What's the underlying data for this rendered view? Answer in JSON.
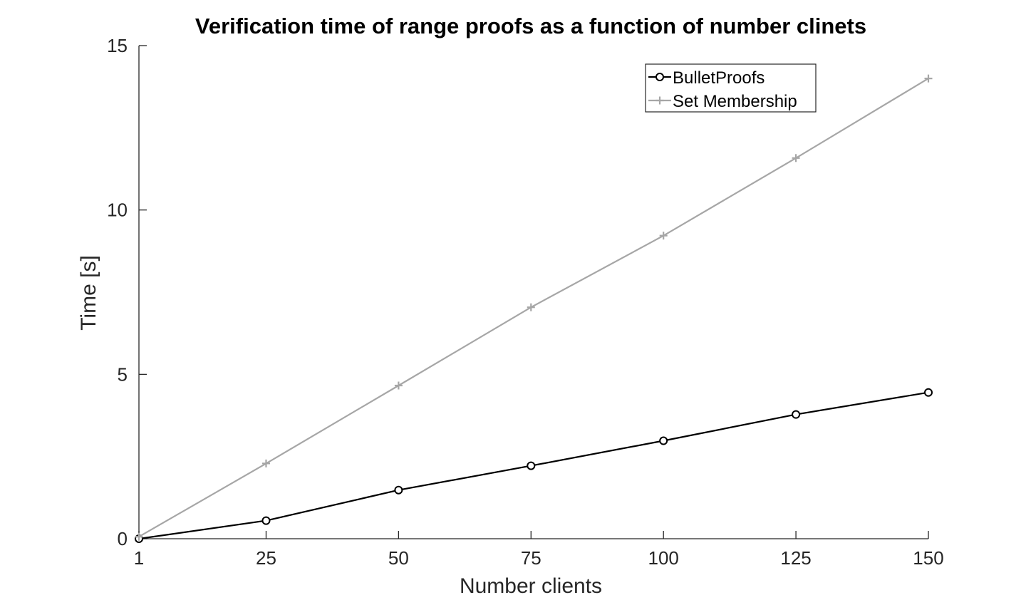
{
  "chart_data": {
    "type": "line",
    "title": "Verification time of range proofs as a function of number clinets",
    "xlabel": "Number clients",
    "ylabel": "Time [s]",
    "x": [
      1,
      25,
      50,
      75,
      100,
      125,
      150
    ],
    "xlim": [
      1,
      150
    ],
    "ylim": [
      0,
      15
    ],
    "xticks": [
      1,
      25,
      50,
      75,
      100,
      125,
      150
    ],
    "yticks": [
      0,
      5,
      10,
      15
    ],
    "grid": false,
    "legend_position": "top-right",
    "series": [
      {
        "name": "BulletProofs",
        "marker": "circle",
        "color": "#000000",
        "values": [
          0.0,
          0.55,
          1.48,
          2.22,
          2.98,
          3.78,
          4.45
        ]
      },
      {
        "name": "Set Membership",
        "marker": "plus",
        "color": "#a6a6a6",
        "values": [
          0.06,
          2.29,
          4.66,
          7.04,
          9.22,
          11.58,
          14.0
        ]
      }
    ]
  }
}
